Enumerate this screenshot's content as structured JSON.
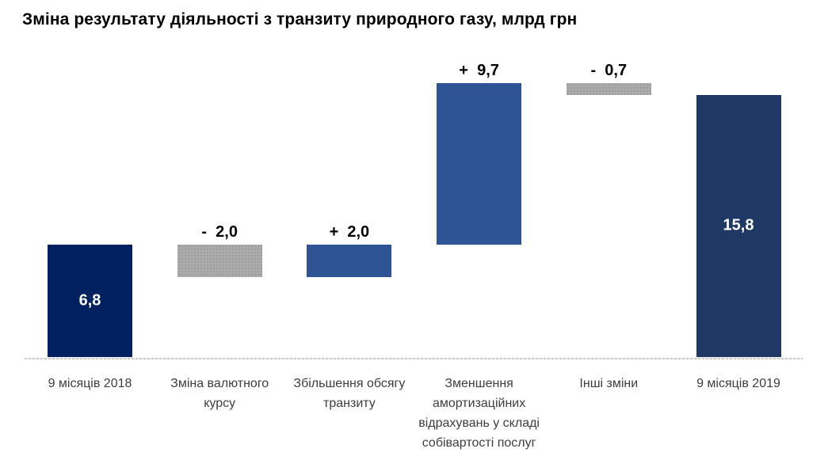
{
  "title": "Зміна результату діяльності з транзиту природного газу, млрд грн",
  "colors": {
    "start_bar": "#002060",
    "end_bar": "#1F3864",
    "increase": "#2F5496",
    "decrease": "#ABABAB",
    "axis_line": "#CCCCCC",
    "label_inside": "#FFFFFF",
    "label_outside": "#000000",
    "category_text": "#3D3D3D",
    "title_text": "#000000"
  },
  "chart_data": {
    "type": "bar",
    "subtype": "waterfall",
    "title": "Зміна результату діяльності з транзиту природного газу, млрд грн",
    "unit": "млрд грн",
    "categories": [
      "9 місяців 2018",
      "Зміна валютного курсу",
      "Збільшення обсягу транзиту",
      "Зменшення амортизаційних відрахувань у складі собівартості послуг",
      "Інші зміни",
      "9 місяців 2019"
    ],
    "categories_display": [
      "9 місяців 2018",
      "Зміна валютного\nкурсу",
      "Збільшення обсягу\nтранзиту",
      "Зменшення\nамортизаційних\nвідрахувань у складі\nсобівартості послуг",
      "Інші зміни",
      "9 місяців 2019"
    ],
    "values": [
      6.8,
      -2.0,
      2.0,
      9.7,
      -0.7,
      15.8
    ],
    "cumulative_start": [
      0,
      4.8,
      4.8,
      6.8,
      15.8,
      0
    ],
    "cumulative_end": [
      6.8,
      6.8,
      6.8,
      16.5,
      16.5,
      15.8
    ],
    "bar_labels": [
      "6,8",
      "-  2,0",
      "+  2,0",
      "+  9,7",
      "-  0,7",
      "15,8"
    ],
    "label_placement": [
      "inside",
      "above",
      "above",
      "above",
      "above",
      "inside"
    ],
    "bar_roles": [
      "total-start",
      "decrease",
      "increase",
      "increase",
      "decrease",
      "total-end"
    ],
    "ylim": [
      0,
      17.5
    ],
    "grid": false,
    "legend": false,
    "y_axis_visible": false
  }
}
